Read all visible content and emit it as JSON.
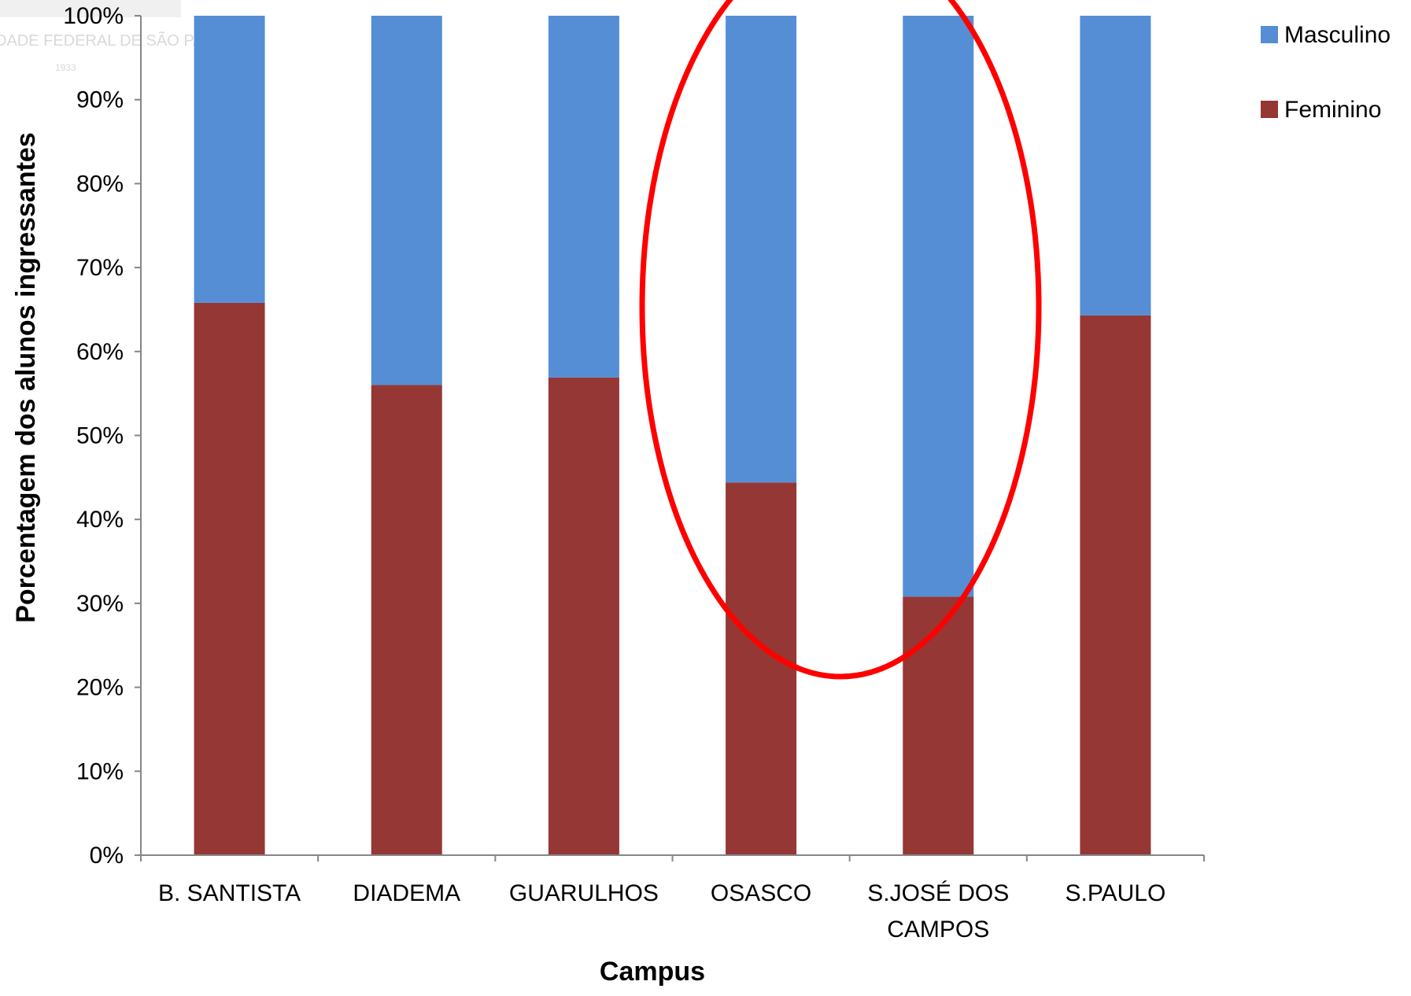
{
  "watermark": {
    "text": "DADE FEDERAL DE SÃO PAU",
    "year": "1933"
  },
  "colors": {
    "Masculino": "#558ed5",
    "Feminino": "#953735",
    "highlight": "#ff0000",
    "axis": "#868686"
  },
  "chart_data": {
    "type": "bar",
    "stacked": true,
    "normalized_percent": true,
    "xlabel": "Campus",
    "ylabel": "Porcentagem dos alunos ingressantes",
    "ylim": [
      0,
      100
    ],
    "yticks": [
      "0%",
      "10%",
      "20%",
      "30%",
      "40%",
      "50%",
      "60%",
      "70%",
      "80%",
      "90%",
      "100%"
    ],
    "categories": [
      [
        "B. SANTISTA"
      ],
      [
        "DIADEMA"
      ],
      [
        "GUARULHOS"
      ],
      [
        "OSASCO"
      ],
      [
        "S.JOSÉ DOS",
        "CAMPOS"
      ],
      [
        "S.PAULO"
      ]
    ],
    "series": [
      {
        "name": "Feminino",
        "values": [
          65.8,
          56.0,
          56.9,
          44.4,
          30.8,
          64.3
        ]
      },
      {
        "name": "Masculino",
        "values": [
          34.2,
          44.0,
          43.1,
          55.6,
          69.2,
          35.7
        ]
      }
    ],
    "legend": {
      "position": "top-right",
      "entries": [
        "Masculino",
        "Feminino"
      ]
    },
    "annotation": {
      "shape": "ellipse",
      "highlights": [
        "OSASCO",
        "S.JOSÉ DOS CAMPOS"
      ]
    },
    "grid": false
  }
}
